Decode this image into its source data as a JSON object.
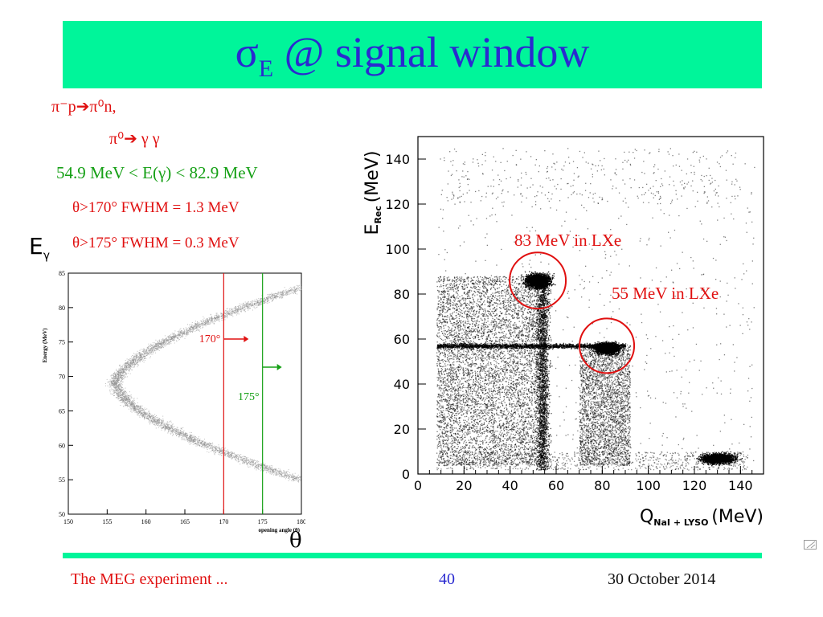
{
  "title": {
    "main": "σ",
    "sub": "E",
    "rest": " @ signal window"
  },
  "reaction": {
    "line1": "π⁻p➔π⁰n,",
    "line2": "π⁰➔ γ γ",
    "range": "54.9 MeV < E(γ) < 82.9 MeV",
    "cut1": "θ>170° FWHM = 1.3 MeV",
    "cut2": "θ>175° FWHM = 0.3 MeV"
  },
  "left_axis_symbol": {
    "main": "E",
    "sub": "γ"
  },
  "theta_label": "θ",
  "footer": {
    "left": "The MEG experiment ...",
    "page": "40",
    "date": "30 October 2014"
  },
  "colors": {
    "title_bg": "#00f59a",
    "title_text": "#2a2ad0",
    "red": "#e01010",
    "green": "#16a016"
  },
  "chart_data": [
    {
      "type": "scatter",
      "ylabel": "Energy (MeV)",
      "xlabel": "opening angle (θ)",
      "xlim": [
        150,
        180
      ],
      "ylim": [
        50,
        85
      ],
      "xticks": [
        "150",
        "155",
        "160",
        "165",
        "170",
        "175",
        "180"
      ],
      "yticks": [
        "50",
        "55",
        "60",
        "65",
        "70",
        "75",
        "80",
        "85"
      ],
      "series": [
        {
          "kind": "band",
          "description_points": [
            [
              180,
              55
            ],
            [
              175,
              56
            ],
            [
              170,
              58
            ],
            [
              165,
              60
            ],
            [
              160,
              63
            ],
            [
              157,
              66
            ],
            [
              156,
              70
            ],
            [
              157,
              75
            ],
            [
              160,
              77
            ],
            [
              165,
              80
            ],
            [
              170,
              81
            ],
            [
              175,
              82
            ],
            [
              180,
              83
            ]
          ]
        }
      ],
      "cut_lines": [
        {
          "x": 170,
          "label": "170°",
          "color": "#e01010"
        },
        {
          "x": 175,
          "label": "175°",
          "color": "#16a016"
        }
      ]
    },
    {
      "type": "scatter",
      "xlabel": "Q",
      "xlabel_sub": "NaI + LYSO",
      "xlabel_unit": "(MeV)",
      "ylabel": "E",
      "ylabel_sub": "Rec",
      "ylabel_unit": "(MeV)",
      "xlim": [
        0,
        150
      ],
      "ylim": [
        0,
        150
      ],
      "xticks": [
        "0",
        "20",
        "40",
        "60",
        "80",
        "100",
        "120",
        "140"
      ],
      "yticks": [
        "0",
        "20",
        "40",
        "60",
        "80",
        "100",
        "120",
        "140"
      ],
      "clusters": [
        {
          "cx": 52,
          "cy": 86,
          "label": "83 MeV in LXe"
        },
        {
          "cx": 82,
          "cy": 57,
          "label": "55 MeV in LXe"
        },
        {
          "cx": 130,
          "cy": 7,
          "label": ""
        }
      ]
    }
  ]
}
